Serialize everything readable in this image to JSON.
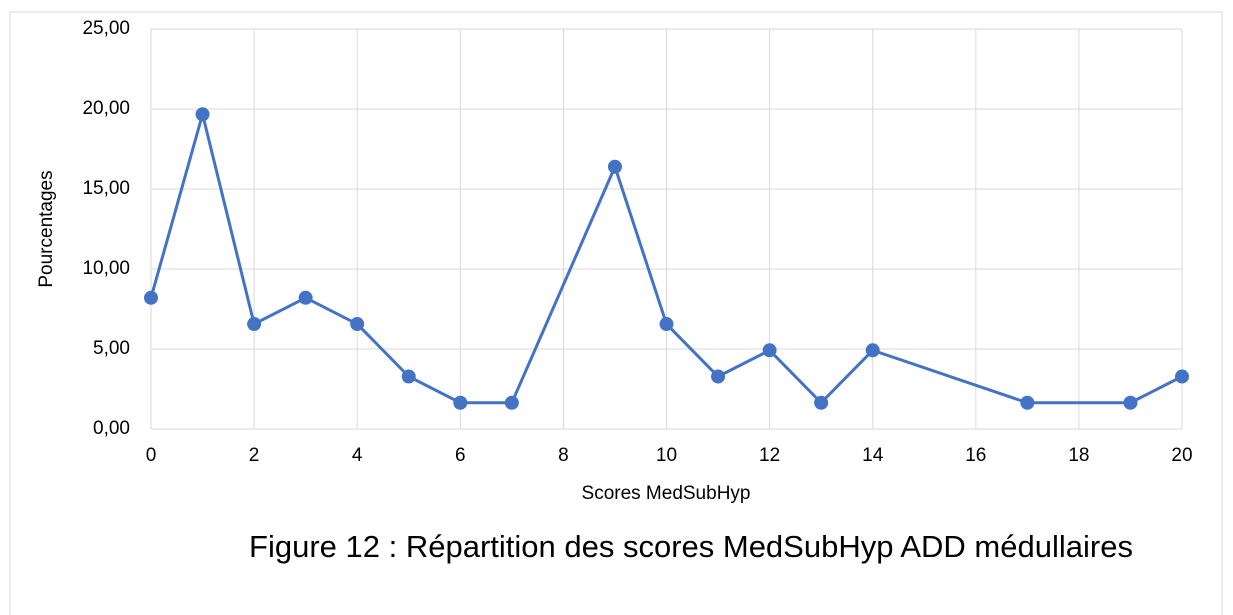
{
  "chart_data": {
    "type": "line",
    "x_label": "Scores MedSubHyp",
    "y_label": "Pourcentages",
    "caption": "Figure 12 : Répartition des scores MedSubHyp ADD médullaires",
    "x": [
      0,
      1,
      2,
      3,
      4,
      5,
      6,
      7,
      9,
      10,
      11,
      12,
      13,
      14,
      17,
      19,
      20
    ],
    "series": [
      {
        "name": "Pourcentages",
        "color": "#4472c4",
        "values": [
          8.2,
          19.67,
          6.56,
          8.2,
          6.56,
          3.28,
          1.64,
          1.64,
          16.39,
          6.56,
          3.28,
          4.92,
          1.64,
          4.92,
          1.64,
          1.64,
          3.28
        ]
      }
    ],
    "xlim": [
      0,
      20
    ],
    "xticks": [
      0,
      2,
      4,
      6,
      8,
      10,
      12,
      14,
      16,
      18,
      20
    ],
    "ylim": [
      0,
      25
    ],
    "yticks": [
      {
        "value": 0,
        "label": "0,00"
      },
      {
        "value": 5,
        "label": "5,00"
      },
      {
        "value": 10,
        "label": "10,00"
      },
      {
        "value": 15,
        "label": "15,00"
      },
      {
        "value": 20,
        "label": "20,00"
      },
      {
        "value": 25,
        "label": "25,00"
      }
    ],
    "grid": true
  }
}
